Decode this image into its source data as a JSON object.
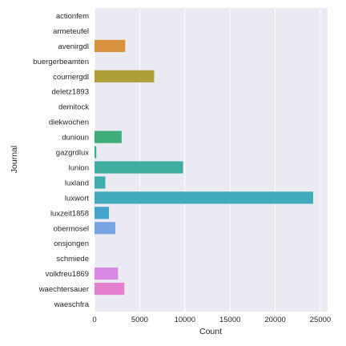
{
  "chart_data": {
    "type": "bar",
    "orientation": "horizontal",
    "xlabel": "Count",
    "ylabel": "Journal",
    "xlim": [
      0,
      25800
    ],
    "xticks": [
      0,
      5000,
      10000,
      15000,
      20000,
      25000
    ],
    "xtick_labels": [
      "0",
      "5000",
      "10000",
      "15000",
      "20000",
      "25000"
    ],
    "grid": true,
    "categories": [
      "actionfem",
      "armeteufel",
      "avenirgdl",
      "buergerbeamten",
      "courriergdl",
      "deletz1893",
      "demitock",
      "diekwochen",
      "dunioun",
      "gazgrdlux",
      "lunion",
      "luxland",
      "luxwort",
      "luxzeit1858",
      "obermosel",
      "onsjongen",
      "schmiede",
      "volkfreu1869",
      "waechtersauer",
      "waeschfra"
    ],
    "values": [
      0,
      0,
      3400,
      0,
      6600,
      0,
      0,
      0,
      3000,
      200,
      9800,
      1200,
      24200,
      1600,
      2300,
      0,
      0,
      2600,
      3300,
      0
    ],
    "colors": [
      "#e1828f",
      "#e38858",
      "#d7913f",
      "#c29b39",
      "#ae9f3a",
      "#98a43a",
      "#78a83a",
      "#47ad49",
      "#3ead79",
      "#3eae93",
      "#3fad9f",
      "#3fadad",
      "#41aabd",
      "#46a5cf",
      "#79a3e3",
      "#a39be5",
      "#c091e5",
      "#d788e0",
      "#e57fcf",
      "#e47fb1"
    ]
  }
}
